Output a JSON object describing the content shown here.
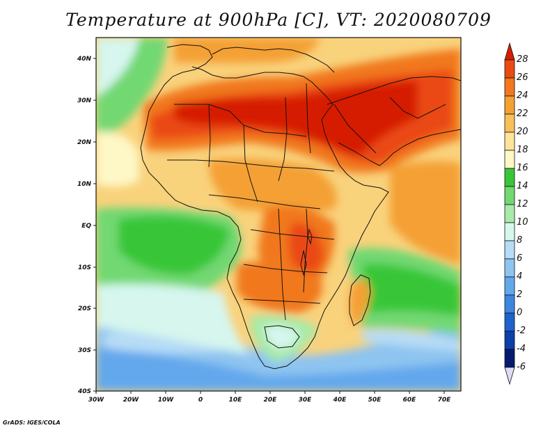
{
  "title": "Temperature at 900hPa [C], VT: 2020080709",
  "credit": "GrADS: IGES/COLA",
  "map": {
    "lon_ticks": [
      "30W",
      "20W",
      "10W",
      "0",
      "10E",
      "20E",
      "30E",
      "40E",
      "50E",
      "60E",
      "70E"
    ],
    "lat_ticks": [
      "40N",
      "30N",
      "20N",
      "10N",
      "EQ",
      "10S",
      "20S",
      "30S",
      "40S"
    ]
  },
  "colorbar": {
    "levels": [
      "28",
      "26",
      "24",
      "22",
      "20",
      "18",
      "16",
      "14",
      "12",
      "10",
      "8",
      "6",
      "4",
      "2",
      "0",
      "-2",
      "-4",
      "-6"
    ],
    "colors": [
      "#d61e00",
      "#ea4a14",
      "#f1781e",
      "#f4a034",
      "#f8c05a",
      "#fde498",
      "#fef7c6",
      "#38c638",
      "#72d872",
      "#a8eaa8",
      "#d6f6ee",
      "#b6dcf6",
      "#8ec4f0",
      "#64a8ec",
      "#3c86e0",
      "#1e62cc",
      "#0c40aa",
      "#061a6e",
      "#dcdcf6"
    ]
  }
}
